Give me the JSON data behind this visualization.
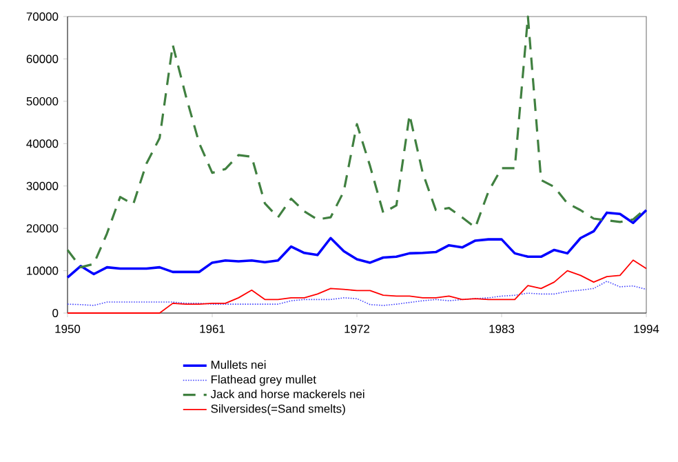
{
  "chart_data": {
    "type": "line",
    "x": [
      1950,
      1951,
      1952,
      1953,
      1954,
      1955,
      1956,
      1957,
      1958,
      1959,
      1960,
      1961,
      1962,
      1963,
      1964,
      1965,
      1966,
      1967,
      1968,
      1969,
      1970,
      1971,
      1972,
      1973,
      1974,
      1975,
      1976,
      1977,
      1978,
      1979,
      1980,
      1981,
      1982,
      1983,
      1984,
      1985,
      1986,
      1987,
      1988,
      1989,
      1990,
      1991,
      1992,
      1993,
      1994
    ],
    "series": [
      {
        "name": "Mullets nei",
        "color": "#0000ff",
        "line_style": "solid",
        "values": [
          8400,
          11100,
          9200,
          10800,
          10500,
          10500,
          10500,
          10800,
          9700,
          9700,
          9700,
          11900,
          12400,
          12200,
          12400,
          12000,
          12400,
          15700,
          14200,
          13700,
          17700,
          14600,
          12700,
          11900,
          13100,
          13300,
          14100,
          14200,
          14400,
          16000,
          15500,
          17100,
          17400,
          17400,
          14100,
          13300,
          13300,
          14900,
          14100,
          17700,
          19300,
          23700,
          23400,
          21300,
          24300
        ]
      },
      {
        "name": "Flathead grey mullet",
        "color": "#4040ff",
        "line_style": "dotted",
        "values": [
          2100,
          2000,
          1800,
          2600,
          2600,
          2600,
          2600,
          2600,
          2600,
          2300,
          2300,
          2100,
          2100,
          2100,
          2100,
          2100,
          2100,
          2900,
          3200,
          3200,
          3200,
          3600,
          3400,
          2000,
          1800,
          2100,
          2500,
          2900,
          3200,
          2900,
          3200,
          3400,
          3600,
          4000,
          4200,
          4700,
          4500,
          4500,
          5100,
          5400,
          5800,
          7500,
          6200,
          6400,
          5600
        ]
      },
      {
        "name": "Jack and horse mackerels nei",
        "color": "#408040",
        "line_style": "dashed",
        "values": [
          14900,
          10800,
          11600,
          18800,
          27400,
          25700,
          35300,
          41300,
          63300,
          51200,
          40200,
          33100,
          34000,
          37300,
          36900,
          25900,
          22600,
          27000,
          24000,
          22100,
          22600,
          28700,
          44600,
          34700,
          23700,
          25400,
          46800,
          33100,
          24300,
          24800,
          22600,
          20200,
          28700,
          34200,
          34200,
          70000,
          31400,
          29800,
          25900,
          24300,
          22300,
          21900,
          21500,
          22100,
          24800
        ]
      },
      {
        "name": "Silversides(=Sand smelts)",
        "color": "#ff0000",
        "line_style": "solid",
        "values": [
          0,
          0,
          0,
          0,
          0,
          0,
          0,
          0,
          2300,
          2100,
          2100,
          2300,
          2300,
          3600,
          5400,
          3200,
          3200,
          3600,
          3600,
          4500,
          5800,
          5600,
          5300,
          5300,
          4200,
          4000,
          4000,
          3600,
          3600,
          4000,
          3200,
          3400,
          3200,
          3200,
          3200,
          6500,
          5800,
          7300,
          10000,
          8900,
          7300,
          8600,
          8900,
          12500,
          10500
        ]
      }
    ],
    "xlim": [
      1950,
      1994
    ],
    "xticks": [
      1950,
      1961,
      1972,
      1983,
      1994
    ],
    "ylim": [
      0,
      70000
    ],
    "yticks": [
      0,
      10000,
      20000,
      30000,
      40000,
      50000,
      60000,
      70000
    ],
    "grid": false,
    "legend": "bottom",
    "marker": "none"
  }
}
